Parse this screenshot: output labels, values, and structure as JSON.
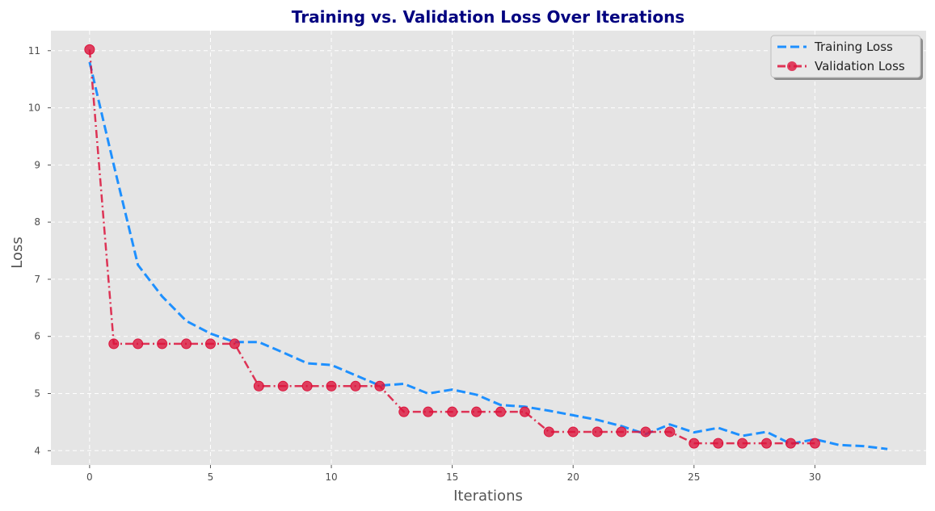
{
  "chart_data": {
    "type": "line",
    "title": "Training vs. Validation Loss Over Iterations",
    "xlabel": "Iterations",
    "ylabel": "Loss",
    "xlim": [
      -1.6,
      34.6
    ],
    "ylim": [
      3.75,
      11.35
    ],
    "xticks": [
      0,
      5,
      10,
      15,
      20,
      25,
      30
    ],
    "yticks": [
      4,
      5,
      6,
      7,
      8,
      9,
      10,
      11
    ],
    "grid": true,
    "legend_position": "top-right",
    "series": [
      {
        "name": "Training Loss",
        "color": "#1E90FF",
        "line_style": "dashed",
        "marker": "none",
        "x": [
          0,
          1,
          2,
          3,
          4,
          5,
          6,
          7,
          8,
          9,
          10,
          11,
          12,
          13,
          14,
          15,
          16,
          17,
          18,
          19,
          20,
          21,
          22,
          23,
          24,
          25,
          26,
          27,
          28,
          29,
          30,
          31,
          32,
          33
        ],
        "y": [
          10.8,
          9.0,
          7.25,
          6.7,
          6.27,
          6.05,
          5.9,
          5.9,
          5.72,
          5.53,
          5.5,
          5.32,
          5.14,
          5.17,
          5.0,
          5.07,
          4.98,
          4.8,
          4.77,
          4.7,
          4.62,
          4.54,
          4.43,
          4.29,
          4.46,
          4.32,
          4.4,
          4.26,
          4.33,
          4.12,
          4.2,
          4.1,
          4.08,
          4.03
        ]
      },
      {
        "name": "Validation Loss",
        "color": "#DC143C",
        "line_style": "dashdot",
        "marker": "circle",
        "x": [
          0,
          1,
          2,
          3,
          4,
          5,
          6,
          7,
          8,
          9,
          10,
          11,
          12,
          13,
          14,
          15,
          16,
          17,
          18,
          19,
          20,
          21,
          22,
          23,
          24,
          25,
          26,
          27,
          28,
          29,
          30
        ],
        "y": [
          11.02,
          5.87,
          5.87,
          5.87,
          5.87,
          5.87,
          5.87,
          5.13,
          5.13,
          5.13,
          5.13,
          5.13,
          5.13,
          4.68,
          4.68,
          4.68,
          4.68,
          4.68,
          4.68,
          4.33,
          4.33,
          4.33,
          4.33,
          4.33,
          4.33,
          4.13,
          4.13,
          4.13,
          4.13,
          4.13,
          4.13
        ]
      }
    ]
  },
  "colors": {
    "title": "#000080",
    "plot_background": "#E5E5E5",
    "grid": "#FFFFFF"
  }
}
